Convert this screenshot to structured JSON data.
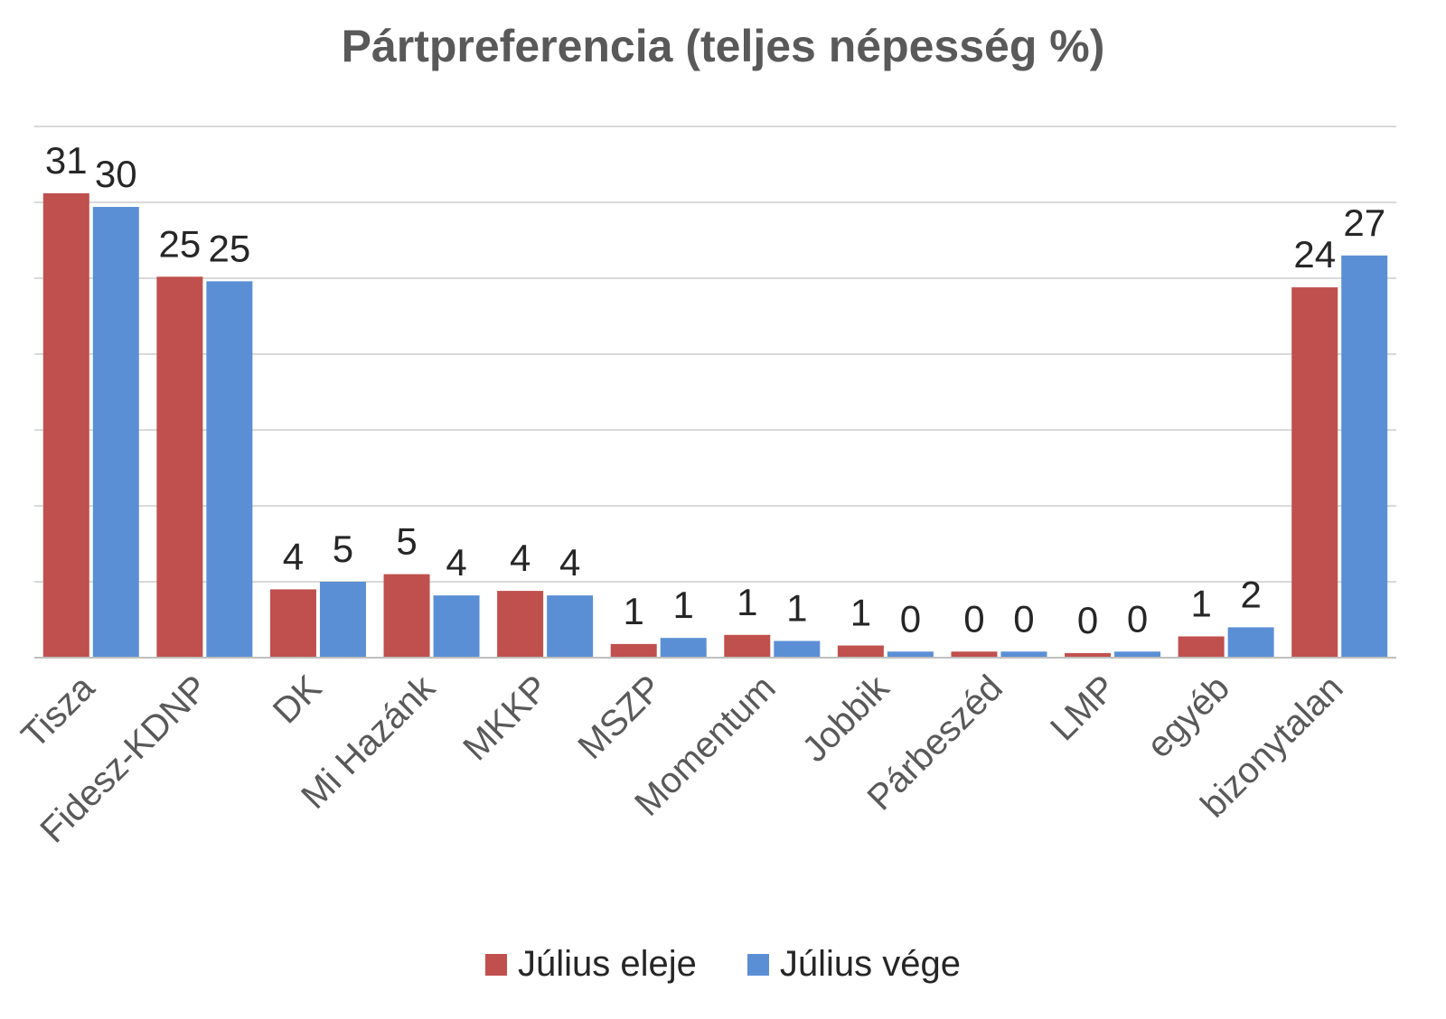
{
  "chart_data": {
    "type": "bar",
    "title": "Pártpreferencia (teljes népesség %)",
    "xlabel": "",
    "ylabel": "",
    "ylim": [
      0,
      35
    ],
    "grid": true,
    "legend_position": "bottom",
    "categories": [
      "Tisza",
      "Fidesz-KDNP",
      "DK",
      "Mi Hazánk",
      "MKKP",
      "MSZP",
      "Momentum",
      "Jobbik",
      "Párbeszéd",
      "LMP",
      "egyéb",
      "bizonytalan"
    ],
    "series": [
      {
        "name": "Július eleje",
        "color": "#c0504d",
        "values": [
          30.6,
          25.1,
          4.5,
          5.5,
          4.4,
          0.9,
          1.5,
          0.8,
          0.4,
          0.3,
          1.4,
          24.4
        ],
        "labels": [
          "31",
          "25",
          "4",
          "5",
          "4",
          "1",
          "1",
          "1",
          "0",
          "0",
          "1",
          "24"
        ]
      },
      {
        "name": "Július vége",
        "color": "#5b8fd5",
        "values": [
          29.7,
          24.8,
          5.0,
          4.1,
          4.1,
          1.3,
          1.1,
          0.4,
          0.4,
          0.4,
          2.0,
          26.5
        ],
        "labels": [
          "30",
          "25",
          "5",
          "4",
          "4",
          "1",
          "1",
          "0",
          "0",
          "0",
          "2",
          "27"
        ]
      }
    ]
  }
}
